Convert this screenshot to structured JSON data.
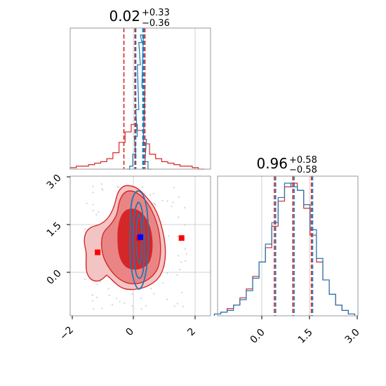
{
  "colors": {
    "red": "#d62728",
    "blue": "#1f77b4",
    "red_fill_light": "#f3c4c4",
    "red_fill_mid": "#ea8585",
    "red_fill_dark": "#d62728",
    "marker_red": "#ff0000",
    "marker_blue": "#0000ff",
    "grid": "#d0d0d0"
  },
  "chart_data": {
    "type": "corner-plot",
    "parameters": [
      "x",
      "y"
    ],
    "ranges": {
      "x": [
        -2.1,
        2.5
      ],
      "y": [
        -1.4,
        3.0
      ]
    },
    "panels": [
      {
        "id": "marginal_x",
        "type": "histogram",
        "title": {
          "value": "0.02",
          "plus": "+0.33",
          "minus": "−0.36"
        },
        "red_quantiles": [
          -0.34,
          0.02,
          0.35
        ],
        "blue_quantiles": [
          0.05,
          0.28,
          0.31
        ],
        "red_series": {
          "name": "",
          "x": [
            -2.0,
            -1.8,
            -1.6,
            -1.4,
            -1.2,
            -1.0,
            -0.8,
            -0.6,
            -0.4,
            -0.2,
            0.0,
            0.2,
            0.4,
            0.6,
            0.8,
            1.0,
            1.2,
            1.4,
            1.6,
            1.8,
            2.0,
            2.2
          ],
          "values": [
            0.01,
            0.02,
            0.02,
            0.03,
            0.04,
            0.05,
            0.07,
            0.11,
            0.18,
            0.25,
            0.3,
            0.26,
            0.17,
            0.1,
            0.07,
            0.05,
            0.04,
            0.03,
            0.02,
            0.02,
            0.01,
            0.0
          ]
        },
        "blue_series": {
          "name": "",
          "x": [
            -0.2,
            -0.1,
            0.0,
            0.05,
            0.1,
            0.15,
            0.2,
            0.25,
            0.3,
            0.35,
            0.4,
            0.5
          ],
          "values": [
            0.0,
            0.02,
            0.1,
            0.22,
            0.4,
            0.7,
            0.85,
            0.9,
            0.55,
            0.2,
            0.05,
            0.0
          ]
        },
        "xlim": [
          -2.1,
          2.5
        ],
        "grid": true
      },
      {
        "id": "marginal_y",
        "type": "histogram",
        "title": {
          "value": "0.96",
          "plus": "+0.58",
          "minus": "−0.58"
        },
        "red_quantiles": [
          0.38,
          0.96,
          1.54
        ],
        "blue_quantiles": [
          0.42,
          1.0,
          1.58
        ],
        "red_series": {
          "name": "",
          "x": [
            -1.4,
            -1.2,
            -1.0,
            -0.8,
            -0.6,
            -0.4,
            -0.2,
            0.0,
            0.2,
            0.4,
            0.6,
            0.8,
            1.0,
            1.2,
            1.4,
            1.6,
            1.8,
            2.0,
            2.2,
            2.4,
            2.6,
            2.8
          ],
          "values": [
            0.01,
            0.02,
            0.04,
            0.06,
            0.1,
            0.15,
            0.22,
            0.3,
            0.38,
            0.5,
            0.64,
            0.72,
            0.74,
            0.7,
            0.6,
            0.45,
            0.3,
            0.2,
            0.12,
            0.06,
            0.03,
            0.01
          ]
        },
        "blue_series": {
          "name": "",
          "x": [
            -1.4,
            -1.2,
            -1.0,
            -0.8,
            -0.6,
            -0.4,
            -0.2,
            0.0,
            0.2,
            0.4,
            0.6,
            0.8,
            1.0,
            1.2,
            1.4,
            1.6,
            1.8,
            2.0,
            2.2,
            2.4,
            2.6,
            2.8
          ],
          "values": [
            0.01,
            0.02,
            0.03,
            0.06,
            0.09,
            0.14,
            0.21,
            0.3,
            0.4,
            0.52,
            0.66,
            0.74,
            0.72,
            0.7,
            0.62,
            0.48,
            0.32,
            0.2,
            0.12,
            0.06,
            0.03,
            0.01
          ]
        },
        "xlim": [
          -1.4,
          3.0
        ],
        "grid": true
      },
      {
        "id": "joint_xy",
        "type": "contour",
        "xlim": [
          -2.1,
          2.5
        ],
        "ylim": [
          -1.4,
          3.0
        ],
        "grid": true,
        "markers": [
          {
            "color": "red",
            "x": -1.2,
            "y": 0.6
          },
          {
            "color": "red",
            "x": 0.15,
            "y": 1.05
          },
          {
            "color": "red",
            "x": 1.55,
            "y": 1.05
          },
          {
            "color": "blue",
            "x": 0.2,
            "y": 1.08
          }
        ]
      }
    ],
    "x_tick_labels": [
      "−2",
      "0",
      "2"
    ],
    "y_tick_labels": [
      "3.0",
      "1.5",
      "0.0"
    ],
    "y_marginal_tick_labels": [
      "0.0",
      "1.5",
      "3.0"
    ]
  }
}
